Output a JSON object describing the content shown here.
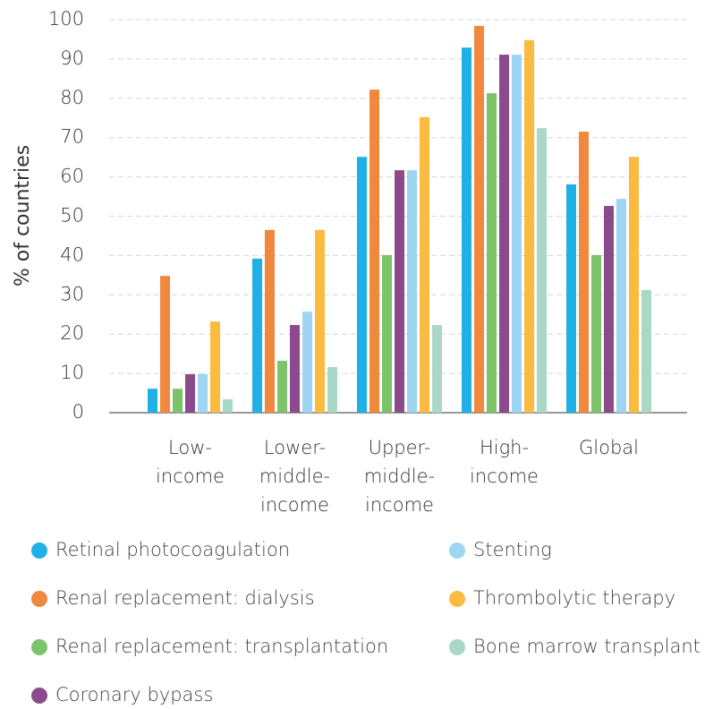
{
  "chart_data": {
    "type": "bar",
    "y_label": "% of countries",
    "categories": [
      "Low-income",
      "Lower-middle-income",
      "Upper-middle-income",
      "High-income",
      "Global"
    ],
    "series": [
      {
        "name": "Retinal photocoagulation",
        "color": "#1fb1e6",
        "values": [
          6.1,
          39.2,
          65.1,
          92.9,
          58.1
        ]
      },
      {
        "name": "Renal replacement: dialysis",
        "color": "#f0883e",
        "values": [
          34.8,
          46.5,
          82.2,
          98.4,
          71.5
        ]
      },
      {
        "name": "Renal replacement: transplantation",
        "color": "#7dc36a",
        "values": [
          6.1,
          13.2,
          40.1,
          81.3,
          40.1
        ]
      },
      {
        "name": "Coronary bypass",
        "color": "#8b4a8c",
        "values": [
          9.8,
          22.3,
          61.7,
          91.1,
          52.6
        ]
      },
      {
        "name": "Stenting",
        "color": "#9dd5f3",
        "values": [
          9.8,
          25.7,
          61.7,
          91.1,
          54.4
        ]
      },
      {
        "name": "Thrombolytic therapy",
        "color": "#fbbb40",
        "values": [
          23.2,
          46.5,
          75.2,
          94.8,
          65.1
        ]
      },
      {
        "name": "Bone marrow transplant",
        "color": "#a9d8c6",
        "values": [
          3.4,
          11.6,
          22.3,
          72.4,
          31.2
        ]
      }
    ],
    "ylim": [
      0,
      100
    ],
    "yticks": [
      0,
      10,
      20,
      30,
      40,
      50,
      60,
      70,
      80,
      90,
      100
    ],
    "grid": true
  }
}
